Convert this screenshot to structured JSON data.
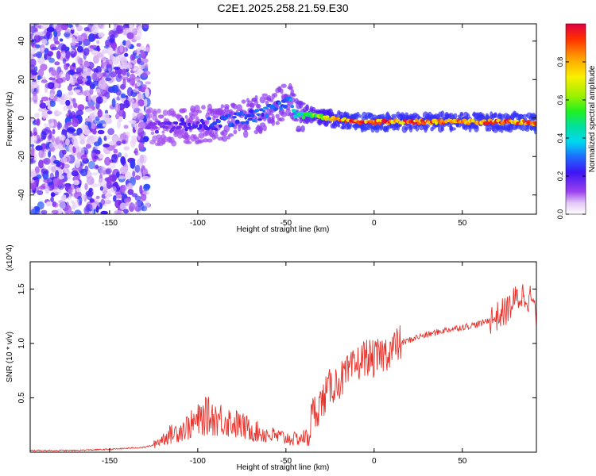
{
  "figure": {
    "title": "C2E1.2025.258.21.59.E30"
  },
  "chart_data": [
    {
      "type": "heatmap",
      "title": "C2E1.2025.258.21.59.E30",
      "xlabel": "Height of straight line (km)",
      "ylabel": "Frequency (Hz)",
      "xlim": [
        -195,
        92
      ],
      "ylim": [
        -50,
        49
      ],
      "xticks": [
        -150,
        -100,
        -50,
        0,
        50
      ],
      "xtick_labels": [
        "-150",
        "-100",
        "-50",
        "0",
        "50"
      ],
      "yticks": [
        -40,
        -20,
        0,
        20,
        40
      ],
      "ytick_labels": [
        "-40",
        "-20",
        "0",
        "20",
        "40"
      ],
      "colorbar": {
        "label": "Normalized spectral amplitude",
        "range": [
          0,
          1
        ],
        "ticks": [
          0.0,
          0.2,
          0.4,
          0.6,
          0.8
        ],
        "tick_labels": [
          "0.0",
          "0.2",
          "0.4",
          "0.6",
          "0.8"
        ],
        "colormap": "rainbow"
      },
      "features": {
        "noise_region_x": [
          -195,
          -128
        ],
        "signal_track": {
          "x": [
            -128,
            -110,
            -90,
            -75,
            -65,
            -55,
            -48,
            -45,
            -40,
            -30,
            -20,
            -10,
            0,
            20,
            50,
            80,
            92
          ],
          "freq_hz": [
            -5,
            -4,
            -3,
            0,
            2,
            6,
            10,
            3,
            2,
            1,
            -1,
            -2,
            -2,
            -2,
            -2,
            -2,
            -3
          ],
          "amplitude": [
            0.15,
            0.2,
            0.25,
            0.3,
            0.3,
            0.3,
            0.3,
            0.4,
            0.5,
            0.7,
            0.85,
            0.95,
            0.95,
            0.9,
            0.9,
            0.92,
            0.95
          ]
        }
      }
    },
    {
      "type": "line",
      "xlabel": "Height of straight line (km)",
      "ylabel": "SNR (10 * v/v)",
      "scale_label": "(x10^4)",
      "xlim": [
        -195,
        92
      ],
      "ylim": [
        0,
        1.75
      ],
      "xticks": [
        -150,
        -100,
        -50,
        0,
        50
      ],
      "xtick_labels": [
        "-150",
        "-100",
        "-50",
        "0",
        "50"
      ],
      "yticks": [
        0.5,
        1.0,
        1.5
      ],
      "ytick_labels": [
        "0.5",
        "1.0",
        "1.5"
      ],
      "series": [
        {
          "name": "SNR",
          "color": "#e8332c",
          "x": [
            -195,
            -170,
            -150,
            -130,
            -125,
            -118,
            -105,
            -95,
            -85,
            -75,
            -65,
            -55,
            -45,
            -38,
            -35,
            -30,
            -25,
            -20,
            -15,
            -10,
            -5,
            0,
            5,
            10,
            15,
            20,
            25,
            30,
            40,
            50,
            60,
            70,
            75,
            80,
            85,
            90,
            92
          ],
          "y": [
            0.01,
            0.01,
            0.02,
            0.04,
            0.06,
            0.12,
            0.2,
            0.28,
            0.25,
            0.2,
            0.15,
            0.12,
            0.1,
            0.12,
            0.35,
            0.45,
            0.6,
            0.65,
            0.72,
            0.8,
            0.88,
            0.85,
            0.9,
            0.95,
            1.0,
            1.03,
            1.06,
            1.08,
            1.12,
            1.15,
            1.18,
            1.25,
            1.3,
            1.4,
            1.45,
            1.4,
            1.2
          ]
        }
      ]
    }
  ]
}
